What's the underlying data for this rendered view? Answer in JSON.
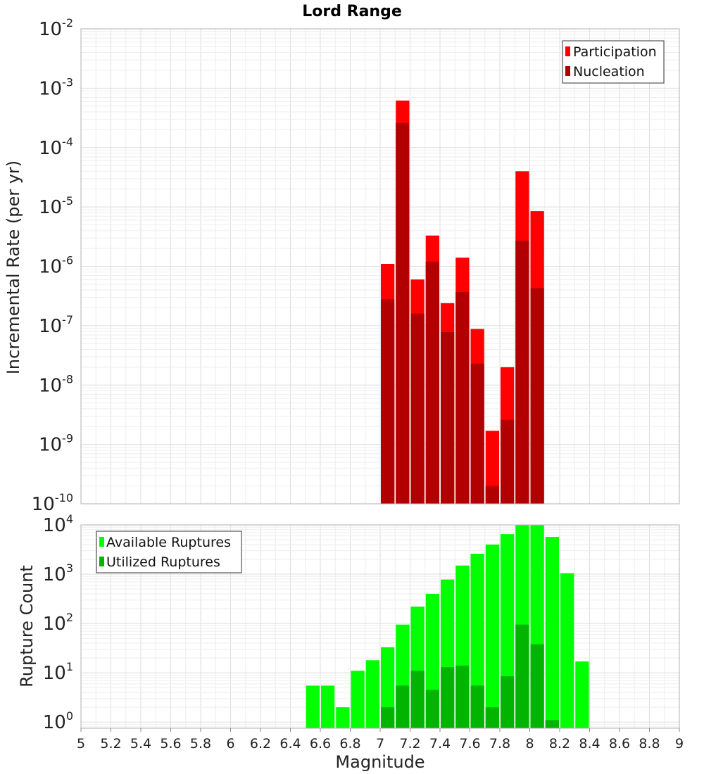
{
  "chart_data": [
    {
      "type": "bar",
      "title": "Lord Range",
      "xlabel": "",
      "ylabel": "Incremental Rate (per yr)",
      "yscale": "log",
      "ylim": [
        1e-10,
        0.01
      ],
      "xlim": [
        5,
        9
      ],
      "bin_width": 0.1,
      "y_ticks": [
        {
          "base": "10",
          "exp": "-10"
        },
        {
          "base": "10",
          "exp": "-9"
        },
        {
          "base": "10",
          "exp": "-8"
        },
        {
          "base": "10",
          "exp": "-7"
        },
        {
          "base": "10",
          "exp": "-6"
        },
        {
          "base": "10",
          "exp": "-5"
        },
        {
          "base": "10",
          "exp": "-4"
        },
        {
          "base": "10",
          "exp": "-3"
        },
        {
          "base": "10",
          "exp": "-2"
        }
      ],
      "legend": {
        "position": "top-right"
      },
      "series": [
        {
          "name": "Participation",
          "color": "#ff0000",
          "x": [
            7.0,
            7.1,
            7.2,
            7.3,
            7.4,
            7.5,
            7.6,
            7.7,
            7.8,
            7.9,
            8.0
          ],
          "values": [
            1.1e-06,
            0.00062,
            6e-07,
            3.3e-06,
            2.4e-07,
            1.4e-06,
            8.8e-08,
            1.7e-09,
            2e-08,
            4e-05,
            8.5e-06
          ]
        },
        {
          "name": "Nucleation",
          "color": "#b20000",
          "x": [
            7.0,
            7.1,
            7.2,
            7.3,
            7.4,
            7.5,
            7.6,
            7.7,
            7.8,
            7.9,
            8.0
          ],
          "values": [
            2.8e-07,
            0.00026,
            1.6e-07,
            1.2e-06,
            7.8e-08,
            3.7e-07,
            2.3e-08,
            2e-10,
            2.6e-09,
            2.7e-06,
            4.3e-07
          ]
        }
      ]
    },
    {
      "type": "bar",
      "title": "",
      "xlabel": "Magnitude",
      "ylabel": "Rupture Count",
      "yscale": "log",
      "ylim": [
        0.75,
        10000
      ],
      "xlim": [
        5,
        9
      ],
      "bin_width": 0.1,
      "x_ticks": [
        "5",
        "5.2",
        "5.4",
        "5.6",
        "5.8",
        "6",
        "6.2",
        "6.4",
        "6.6",
        "6.8",
        "7",
        "7.2",
        "7.4",
        "7.6",
        "7.8",
        "8",
        "8.2",
        "8.4",
        "8.6",
        "8.8",
        "9"
      ],
      "y_ticks": [
        {
          "base": "10",
          "exp": "0"
        },
        {
          "base": "10",
          "exp": "1"
        },
        {
          "base": "10",
          "exp": "2"
        },
        {
          "base": "10",
          "exp": "3"
        },
        {
          "base": "10",
          "exp": "4"
        }
      ],
      "legend": {
        "position": "top-left"
      },
      "series": [
        {
          "name": "Available Ruptures",
          "color": "#00ff00",
          "x": [
            6.5,
            6.6,
            6.7,
            6.8,
            6.9,
            7.0,
            7.1,
            7.2,
            7.3,
            7.4,
            7.5,
            7.6,
            7.7,
            7.8,
            7.9,
            8.0,
            8.1,
            8.2,
            8.3
          ],
          "values": [
            5.5,
            5.5,
            2,
            11,
            18,
            33,
            95,
            220,
            400,
            780,
            1500,
            2600,
            4000,
            6500,
            10000,
            10000,
            5700,
            1050,
            17
          ]
        },
        {
          "name": "Utilized Ruptures",
          "color": "#00b400",
          "x": [
            7.0,
            7.1,
            7.2,
            7.3,
            7.4,
            7.5,
            7.6,
            7.7,
            7.8,
            7.9,
            8.0,
            8.1
          ],
          "values": [
            2,
            5.5,
            11,
            4.5,
            13,
            14,
            5.5,
            2,
            8.5,
            95,
            38,
            1.1
          ]
        }
      ]
    }
  ]
}
